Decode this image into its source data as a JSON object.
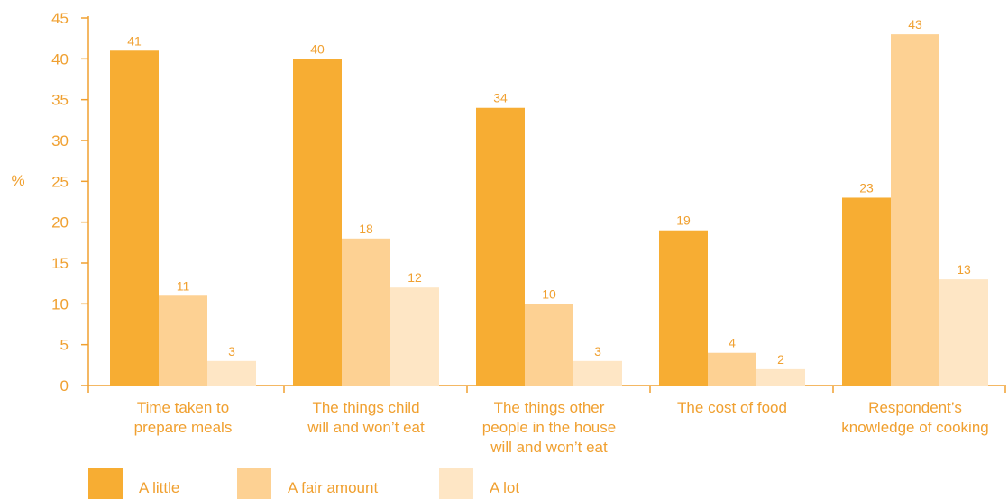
{
  "chart_data": {
    "type": "bar",
    "ylabel": "%",
    "ylim": [
      0,
      45
    ],
    "yticks": [
      0,
      5,
      10,
      15,
      20,
      25,
      30,
      35,
      40,
      45
    ],
    "categories": [
      [
        "Time taken to",
        "prepare meals"
      ],
      [
        "The things child",
        "will and won’t eat"
      ],
      [
        "The things other",
        "people in the house",
        "will and won’t eat"
      ],
      [
        "The cost of food"
      ],
      [
        "Respondent’s",
        "knowledge of cooking"
      ]
    ],
    "series": [
      {
        "name": "A little",
        "color": "#f7ad33",
        "values": [
          41,
          40,
          34,
          19,
          23
        ]
      },
      {
        "name": "A fair amount",
        "color": "#fdd193",
        "values": [
          11,
          18,
          10,
          4,
          43
        ]
      },
      {
        "name": "A lot",
        "color": "#fee6c5",
        "values": [
          3,
          12,
          3,
          2,
          13
        ]
      }
    ],
    "axis_color": "#f0a030",
    "grid": false,
    "legend_position": "bottom-left"
  }
}
